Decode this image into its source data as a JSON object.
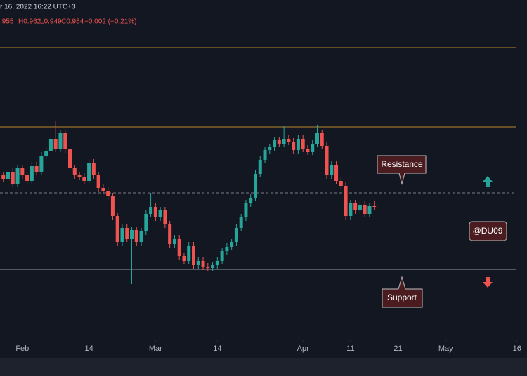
{
  "chart_data": {
    "type": "candlestick",
    "header": {
      "date": "r 16, 2022 16:22 UTC+3",
      "open": ".955",
      "high": "H0.962",
      "low": "L0.949",
      "close": "C0.954",
      "change": "−0.002 (−0.21%)"
    },
    "annotations": {
      "resistance": "Resistance",
      "support": "Support",
      "watermark": "@DU09"
    },
    "x": [
      -4,
      -3,
      -2,
      -1,
      0,
      1,
      2,
      3,
      4,
      5,
      6,
      7,
      8,
      9,
      10,
      11,
      12,
      13,
      14,
      15,
      16,
      17,
      18,
      19,
      20,
      21,
      22,
      23,
      24,
      25,
      26,
      27,
      28,
      29,
      30,
      31,
      32,
      33,
      34,
      35,
      36,
      37,
      38,
      39,
      40,
      41,
      42,
      43,
      44,
      45,
      46,
      47,
      48,
      49,
      50,
      51,
      52,
      53,
      54,
      55,
      56,
      57,
      58,
      59,
      60,
      61,
      62,
      63,
      64,
      65,
      66,
      67,
      68,
      69,
      70,
      71,
      72,
      73,
      74
    ],
    "open": [
      0.999,
      0.994,
      1.004,
      0.987,
      1.009,
      0.999,
      0.991,
      1.013,
      1.004,
      1.027,
      1.034,
      1.051,
      1.037,
      1.059,
      1.036,
      1.009,
      0.999,
      0.997,
      0.991,
      1.017,
      0.999,
      0.981,
      0.977,
      0.969,
      0.941,
      0.904,
      0.924,
      0.909,
      0.921,
      0.904,
      0.919,
      0.944,
      0.954,
      0.939,
      0.949,
      0.929,
      0.901,
      0.909,
      0.884,
      0.877,
      0.899,
      0.871,
      0.877,
      0.869,
      0.867,
      0.871,
      0.877,
      0.891,
      0.897,
      0.904,
      0.924,
      0.939,
      0.959,
      0.967,
      1.001,
      1.021,
      1.035,
      1.039,
      1.049,
      1.044,
      1.051,
      1.047,
      1.035,
      1.051,
      1.037,
      1.033,
      1.044,
      1.059,
      1.041,
      0.999,
      1.014,
      0.991,
      0.984,
      0.941,
      0.959,
      0.949,
      0.957,
      0.944,
      0.955
    ],
    "high": [
      1.004,
      1.009,
      1.009,
      1.014,
      1.014,
      1.004,
      1.018,
      1.018,
      1.032,
      1.039,
      1.056,
      1.077,
      1.064,
      1.064,
      1.041,
      1.014,
      1.004,
      1.002,
      1.022,
      1.022,
      1.004,
      0.986,
      0.982,
      0.974,
      0.946,
      0.929,
      0.929,
      0.926,
      0.926,
      0.924,
      0.949,
      0.974,
      0.959,
      0.954,
      0.954,
      0.934,
      0.914,
      0.914,
      0.889,
      0.904,
      0.904,
      0.882,
      0.882,
      0.874,
      0.876,
      0.882,
      0.896,
      0.902,
      0.909,
      0.929,
      0.944,
      0.964,
      0.972,
      1.006,
      1.026,
      1.04,
      1.044,
      1.054,
      1.054,
      1.069,
      1.056,
      1.052,
      1.056,
      1.056,
      1.042,
      1.049,
      1.071,
      1.064,
      1.046,
      1.019,
      1.019,
      0.996,
      0.989,
      0.964,
      0.964,
      0.962,
      0.962,
      0.96,
      0.962
    ],
    "low": [
      0.989,
      0.989,
      0.982,
      0.982,
      0.994,
      0.986,
      0.986,
      0.999,
      0.999,
      1.022,
      1.029,
      1.032,
      1.032,
      1.031,
      1.004,
      0.994,
      0.992,
      0.986,
      0.986,
      0.994,
      0.976,
      0.972,
      0.964,
      0.936,
      0.899,
      0.899,
      0.904,
      0.844,
      0.899,
      0.899,
      0.914,
      0.939,
      0.934,
      0.934,
      0.924,
      0.896,
      0.896,
      0.879,
      0.872,
      0.872,
      0.866,
      0.866,
      0.864,
      0.862,
      0.862,
      0.866,
      0.872,
      0.886,
      0.892,
      0.899,
      0.919,
      0.934,
      0.954,
      0.962,
      0.996,
      1.016,
      1.03,
      1.034,
      1.039,
      1.039,
      1.042,
      1.03,
      1.03,
      1.032,
      1.028,
      1.028,
      1.039,
      1.036,
      0.994,
      0.994,
      0.986,
      0.979,
      0.936,
      0.936,
      0.944,
      0.944,
      0.939,
      0.939,
      0.949
    ],
    "close": [
      0.994,
      1.004,
      0.987,
      1.009,
      0.999,
      0.991,
      1.013,
      1.004,
      1.027,
      1.034,
      1.051,
      1.037,
      1.059,
      1.036,
      1.009,
      0.999,
      0.997,
      0.991,
      1.017,
      0.999,
      0.981,
      0.977,
      0.969,
      0.941,
      0.904,
      0.924,
      0.909,
      0.921,
      0.904,
      0.919,
      0.944,
      0.954,
      0.939,
      0.949,
      0.929,
      0.901,
      0.909,
      0.884,
      0.877,
      0.899,
      0.871,
      0.877,
      0.869,
      0.867,
      0.871,
      0.877,
      0.891,
      0.897,
      0.904,
      0.924,
      0.939,
      0.959,
      0.967,
      1.001,
      1.021,
      1.035,
      1.039,
      1.049,
      1.044,
      1.051,
      1.047,
      1.035,
      1.051,
      1.037,
      1.033,
      1.044,
      1.059,
      1.041,
      0.999,
      1.014,
      0.991,
      0.984,
      0.941,
      0.959,
      0.949,
      0.957,
      0.944,
      0.955,
      0.954
    ],
    "up_color": "#26a69a",
    "down_color": "#ef5350",
    "levels": [
      {
        "value": 1.181,
        "color": "#b8862b",
        "style": "solid"
      },
      {
        "value": 1.068,
        "color": "#b8862b",
        "style": "solid"
      },
      {
        "value": 0.974,
        "color": "#787b86",
        "style": "dashed"
      },
      {
        "value": 0.865,
        "color": "#9598a1",
        "style": "solid"
      }
    ],
    "xlim": [
      -4.7,
      106.1
    ],
    "ylim": [
      0.765,
      1.249
    ],
    "xticks": [
      {
        "value": 0,
        "label": "Feb"
      },
      14,
      {
        "value": 28,
        "label": "Mar"
      },
      {
        "value": 41,
        "label": "14"
      },
      {
        "value": 59,
        "label": "Apr"
      },
      {
        "value": 69,
        "label": "11"
      },
      {
        "value": 79,
        "label": "21"
      },
      {
        "value": 89,
        "label": "May"
      },
      {
        "value": 104,
        "label": "16"
      }
    ]
  }
}
